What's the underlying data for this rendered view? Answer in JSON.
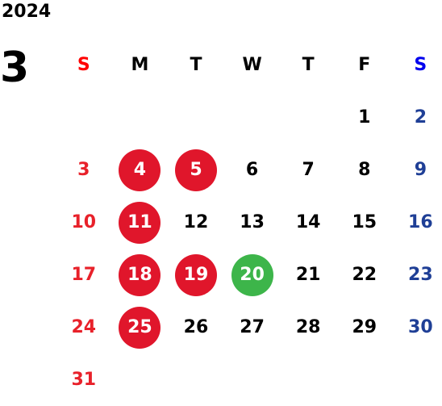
{
  "header": {
    "year": "2024",
    "month": "3"
  },
  "weekdays": [
    "S",
    "M",
    "T",
    "W",
    "T",
    "F",
    "S"
  ],
  "colors": {
    "sunday": "#e8212a",
    "saturday": "#1f3f96",
    "holiday_circle": "#e0162b",
    "today_circle": "#3db54a"
  },
  "weeks": [
    [
      "",
      "",
      "",
      "",
      "",
      "1",
      "2"
    ],
    [
      "3",
      "4",
      "5",
      "6",
      "7",
      "8",
      "9"
    ],
    [
      "10",
      "11",
      "12",
      "13",
      "14",
      "15",
      "16"
    ],
    [
      "17",
      "18",
      "19",
      "20",
      "21",
      "22",
      "23"
    ],
    [
      "24",
      "25",
      "26",
      "27",
      "28",
      "29",
      "30"
    ],
    [
      "31",
      "",
      "",
      "",
      "",
      "",
      ""
    ]
  ],
  "highlighted_days": {
    "red": [
      "4",
      "5",
      "11",
      "18",
      "19",
      "25"
    ],
    "green": [
      "20"
    ]
  }
}
